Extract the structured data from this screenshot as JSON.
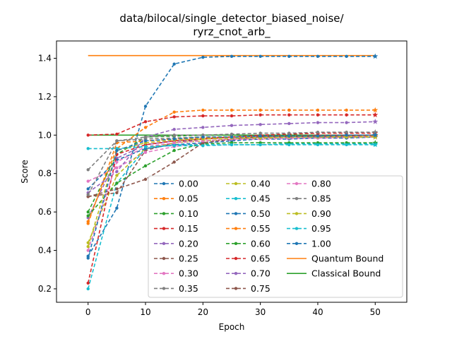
{
  "chart_data": {
    "type": "line",
    "title_line1": "data/bilocal/single_detector_biased_noise/",
    "title_line2": "ryrz_cnot_arb_",
    "xlabel": "Epoch",
    "ylabel": "Score",
    "xlim": [
      -5.5,
      55.5
    ],
    "ylim": [
      0.13,
      1.49
    ],
    "xticks": [
      0,
      10,
      20,
      30,
      40,
      50
    ],
    "xtick_labels": [
      "0",
      "10",
      "20",
      "30",
      "40",
      "50"
    ],
    "yticks": [
      0.2,
      0.4,
      0.6,
      0.8,
      1.0,
      1.2,
      1.4
    ],
    "ytick_labels": [
      "0.2",
      "0.4",
      "0.6",
      "0.8",
      "1.0",
      "1.2",
      "1.4"
    ],
    "grid": false,
    "legend_placement": "lower-right",
    "x": [
      0,
      5,
      10,
      15,
      20,
      25,
      30,
      35,
      40,
      45,
      50
    ],
    "series": [
      {
        "name": "0.00",
        "color": "#1f77b4",
        "values": [
          0.37,
          0.62,
          1.15,
          1.37,
          1.405,
          1.41,
          1.41,
          1.41,
          1.41,
          1.41,
          1.41
        ]
      },
      {
        "name": "0.05",
        "color": "#ff7f0e",
        "values": [
          0.55,
          0.93,
          1.04,
          1.12,
          1.13,
          1.13,
          1.13,
          1.13,
          1.13,
          1.13,
          1.13
        ]
      },
      {
        "name": "0.10",
        "color": "#2ca02c",
        "values": [
          0.6,
          0.9,
          0.99,
          0.995,
          1.0,
          1.0,
          1.0,
          1.0,
          1.0,
          1.0,
          1.0
        ]
      },
      {
        "name": "0.15",
        "color": "#d62728",
        "values": [
          1.0,
          1.005,
          1.07,
          1.095,
          1.1,
          1.1,
          1.105,
          1.105,
          1.105,
          1.105,
          1.105
        ]
      },
      {
        "name": "0.20",
        "color": "#9467bd",
        "values": [
          0.57,
          0.88,
          0.95,
          0.97,
          0.98,
          0.99,
          0.99,
          0.99,
          0.99,
          0.99,
          0.99
        ]
      },
      {
        "name": "0.25",
        "color": "#8c564b",
        "values": [
          0.68,
          0.7,
          0.92,
          0.96,
          0.98,
          0.99,
          0.995,
          0.995,
          1.0,
          1.0,
          1.0
        ]
      },
      {
        "name": "0.30",
        "color": "#e377c2",
        "values": [
          0.76,
          0.83,
          0.91,
          0.94,
          0.96,
          0.975,
          0.98,
          0.98,
          0.985,
          0.985,
          0.99
        ]
      },
      {
        "name": "0.35",
        "color": "#7f7f7f",
        "values": [
          0.82,
          0.97,
          0.98,
          0.985,
          0.99,
          0.99,
          0.99,
          0.99,
          0.99,
          0.99,
          0.99
        ]
      },
      {
        "name": "0.40",
        "color": "#bcbd22",
        "values": [
          0.44,
          0.79,
          0.93,
          0.96,
          0.97,
          0.98,
          0.985,
          0.99,
          0.99,
          0.99,
          0.99
        ]
      },
      {
        "name": "0.45",
        "color": "#17becf",
        "values": [
          0.2,
          0.75,
          0.93,
          0.95,
          0.95,
          0.95,
          0.95,
          0.955,
          0.955,
          0.955,
          0.955
        ]
      },
      {
        "name": "0.50",
        "color": "#1f77b4",
        "values": [
          0.72,
          0.87,
          0.93,
          0.95,
          0.96,
          0.97,
          0.98,
          0.98,
          0.985,
          0.985,
          0.99
        ]
      },
      {
        "name": "0.55",
        "color": "#ff7f0e",
        "values": [
          0.54,
          0.96,
          0.97,
          0.98,
          0.985,
          0.99,
          0.99,
          0.99,
          0.995,
          0.995,
          0.995
        ]
      },
      {
        "name": "0.60",
        "color": "#2ca02c",
        "values": [
          0.58,
          0.75,
          0.84,
          0.92,
          0.955,
          0.96,
          0.96,
          0.96,
          0.96,
          0.96,
          0.96
        ]
      },
      {
        "name": "0.65",
        "color": "#d62728",
        "values": [
          0.23,
          0.9,
          0.95,
          0.97,
          0.98,
          0.99,
          1.0,
          1.005,
          1.01,
          1.01,
          1.01
        ]
      },
      {
        "name": "0.70",
        "color": "#9467bd",
        "values": [
          0.7,
          0.81,
          0.99,
          1.03,
          1.04,
          1.05,
          1.055,
          1.06,
          1.065,
          1.065,
          1.07
        ]
      },
      {
        "name": "0.75",
        "color": "#8c564b",
        "values": [
          0.68,
          0.72,
          0.77,
          0.86,
          0.96,
          0.98,
          0.99,
          0.99,
          0.995,
          0.995,
          1.0
        ]
      },
      {
        "name": "0.80",
        "color": "#e377c2",
        "values": [
          0.4,
          0.86,
          0.94,
          0.96,
          0.97,
          0.98,
          0.98,
          0.985,
          0.985,
          0.99,
          0.99
        ]
      },
      {
        "name": "0.85",
        "color": "#7f7f7f",
        "values": [
          0.69,
          0.97,
          0.99,
          1.0,
          1.0,
          1.005,
          1.01,
          1.01,
          1.015,
          1.015,
          1.015
        ]
      },
      {
        "name": "0.90",
        "color": "#bcbd22",
        "values": [
          0.42,
          0.92,
          0.96,
          0.975,
          0.98,
          0.985,
          0.985,
          0.99,
          0.99,
          0.99,
          0.99
        ]
      },
      {
        "name": "0.95",
        "color": "#17becf",
        "values": [
          0.93,
          0.93,
          0.94,
          0.945,
          0.945,
          0.95,
          0.95,
          0.95,
          0.95,
          0.95,
          0.95
        ]
      },
      {
        "name": "1.00",
        "color": "#1f77b4",
        "values": [
          0.36,
          0.92,
          0.97,
          0.98,
          0.99,
          0.99,
          0.995,
          0.995,
          0.995,
          1.0,
          1.0
        ]
      }
    ],
    "bounds": [
      {
        "name": "Quantum Bound",
        "color": "#ff7f0e",
        "value": 1.414
      },
      {
        "name": "Classical Bound",
        "color": "#2ca02c",
        "value": 1.0
      }
    ]
  }
}
